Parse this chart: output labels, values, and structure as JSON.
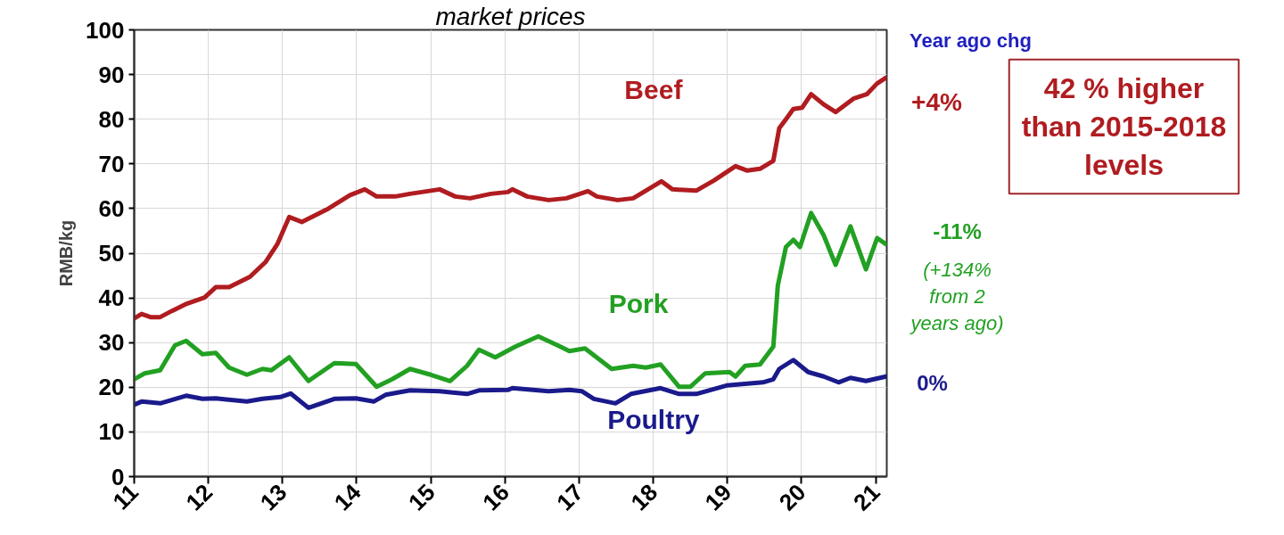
{
  "chart_data": {
    "type": "line",
    "title": "market prices",
    "ylabel": "RMB/kg",
    "xlim": [
      2011,
      2021.15
    ],
    "ylim": [
      0,
      100
    ],
    "xticks": [
      {
        "value": 2011,
        "label": "11"
      },
      {
        "value": 2012,
        "label": "12"
      },
      {
        "value": 2013,
        "label": "13"
      },
      {
        "value": 2014,
        "label": "14"
      },
      {
        "value": 2015,
        "label": "15"
      },
      {
        "value": 2016,
        "label": "16"
      },
      {
        "value": 2017,
        "label": "17"
      },
      {
        "value": 2018,
        "label": "18"
      },
      {
        "value": 2019,
        "label": "19"
      },
      {
        "value": 2020,
        "label": "20"
      },
      {
        "value": 2021,
        "label": "21"
      }
    ],
    "yticks": [
      0,
      10,
      20,
      30,
      40,
      50,
      60,
      70,
      80,
      90,
      100
    ],
    "grid": true,
    "marker": "none",
    "line_style": "solid",
    "series": [
      {
        "name": "Beef",
        "color": "#b01c20",
        "x": [
          2011.0,
          2011.1,
          2011.22,
          2011.35,
          2011.51,
          2011.71,
          2011.95,
          2012.1,
          2012.28,
          2012.56,
          2012.77,
          2012.93,
          2013.09,
          2013.26,
          2013.62,
          2013.91,
          2014.11,
          2014.27,
          2014.52,
          2014.72,
          2015.0,
          2015.12,
          2015.33,
          2015.53,
          2015.81,
          2016.04,
          2016.1,
          2016.3,
          2016.59,
          2016.83,
          2017.12,
          2017.24,
          2017.52,
          2017.73,
          2017.97,
          2018.11,
          2018.26,
          2018.58,
          2018.82,
          2019.11,
          2019.27,
          2019.44,
          2019.62,
          2019.7,
          2019.79,
          2019.89,
          2020.01,
          2020.13,
          2020.3,
          2020.46,
          2020.7,
          2020.88,
          2021.02,
          2021.14
        ],
        "values": [
          35.4,
          36.4,
          35.7,
          35.7,
          37.1,
          38.7,
          40.1,
          42.4,
          42.4,
          44.7,
          48.0,
          52.0,
          58.1,
          57.0,
          60.0,
          63.0,
          64.3,
          62.7,
          62.7,
          63.3,
          64.0,
          64.3,
          62.7,
          62.3,
          63.3,
          63.7,
          64.3,
          62.7,
          61.9,
          62.3,
          63.9,
          62.7,
          61.9,
          62.3,
          64.7,
          66.1,
          64.3,
          64.0,
          66.3,
          69.5,
          68.5,
          68.9,
          70.7,
          78.0,
          80.0,
          82.3,
          82.6,
          85.6,
          83.3,
          81.6,
          84.6,
          85.6,
          88.0,
          89.3
        ]
      },
      {
        "name": "Pork",
        "color": "#22a022",
        "x": [
          2011.0,
          2011.14,
          2011.35,
          2011.55,
          2011.7,
          2011.92,
          2012.1,
          2012.28,
          2012.52,
          2012.73,
          2012.85,
          2013.09,
          2013.35,
          2013.7,
          2013.99,
          2014.27,
          2014.48,
          2014.72,
          2015.0,
          2015.26,
          2015.49,
          2015.65,
          2015.87,
          2016.14,
          2016.45,
          2016.71,
          2016.87,
          2017.08,
          2017.44,
          2017.73,
          2017.9,
          2018.1,
          2018.35,
          2018.5,
          2018.7,
          2019.03,
          2019.11,
          2019.24,
          2019.44,
          2019.62,
          2019.68,
          2019.79,
          2019.89,
          2019.98,
          2020.13,
          2020.3,
          2020.46,
          2020.66,
          2020.87,
          2021.02,
          2021.14
        ],
        "values": [
          21.8,
          23.1,
          23.8,
          29.4,
          30.4,
          27.4,
          27.7,
          24.4,
          22.8,
          24.1,
          23.8,
          26.7,
          21.4,
          25.4,
          25.2,
          20.1,
          21.8,
          24.1,
          22.8,
          21.4,
          24.8,
          28.4,
          26.7,
          29.1,
          31.4,
          29.4,
          28.1,
          28.7,
          24.1,
          24.8,
          24.4,
          25.1,
          20.1,
          20.1,
          23.1,
          23.4,
          22.4,
          24.8,
          25.1,
          29.1,
          42.7,
          51.4,
          53.0,
          51.4,
          59.0,
          54.0,
          47.4,
          56.0,
          46.4,
          53.4,
          52.0
        ]
      },
      {
        "name": "Poultry",
        "color": "#1a1a8c",
        "x": [
          2011.0,
          2011.1,
          2011.35,
          2011.7,
          2011.92,
          2012.1,
          2012.52,
          2012.73,
          2012.97,
          2013.11,
          2013.35,
          2013.7,
          2013.99,
          2014.23,
          2014.39,
          2014.72,
          2015.12,
          2015.49,
          2015.65,
          2016.04,
          2016.1,
          2016.59,
          2016.87,
          2017.04,
          2017.2,
          2017.49,
          2017.7,
          2018.1,
          2018.35,
          2018.58,
          2018.99,
          2019.48,
          2019.62,
          2019.7,
          2019.89,
          2020.09,
          2020.3,
          2020.5,
          2020.66,
          2020.87,
          2021.14
        ],
        "values": [
          16.1,
          16.8,
          16.4,
          18.1,
          17.4,
          17.5,
          16.8,
          17.4,
          17.8,
          18.6,
          15.4,
          17.4,
          17.5,
          16.8,
          18.3,
          19.3,
          19.1,
          18.5,
          19.3,
          19.4,
          19.8,
          19.1,
          19.4,
          19.1,
          17.4,
          16.4,
          18.5,
          19.8,
          18.5,
          18.5,
          20.4,
          21.1,
          21.8,
          24.1,
          26.1,
          23.4,
          22.4,
          21.1,
          22.1,
          21.4,
          22.4
        ]
      }
    ],
    "annotations": [
      "Year ago chg",
      "+4%",
      "42 % higher\nthan 2015-2018\nlevels",
      "-11%",
      "(+134%\nfrom 2\nyears ago)",
      "0%"
    ]
  }
}
